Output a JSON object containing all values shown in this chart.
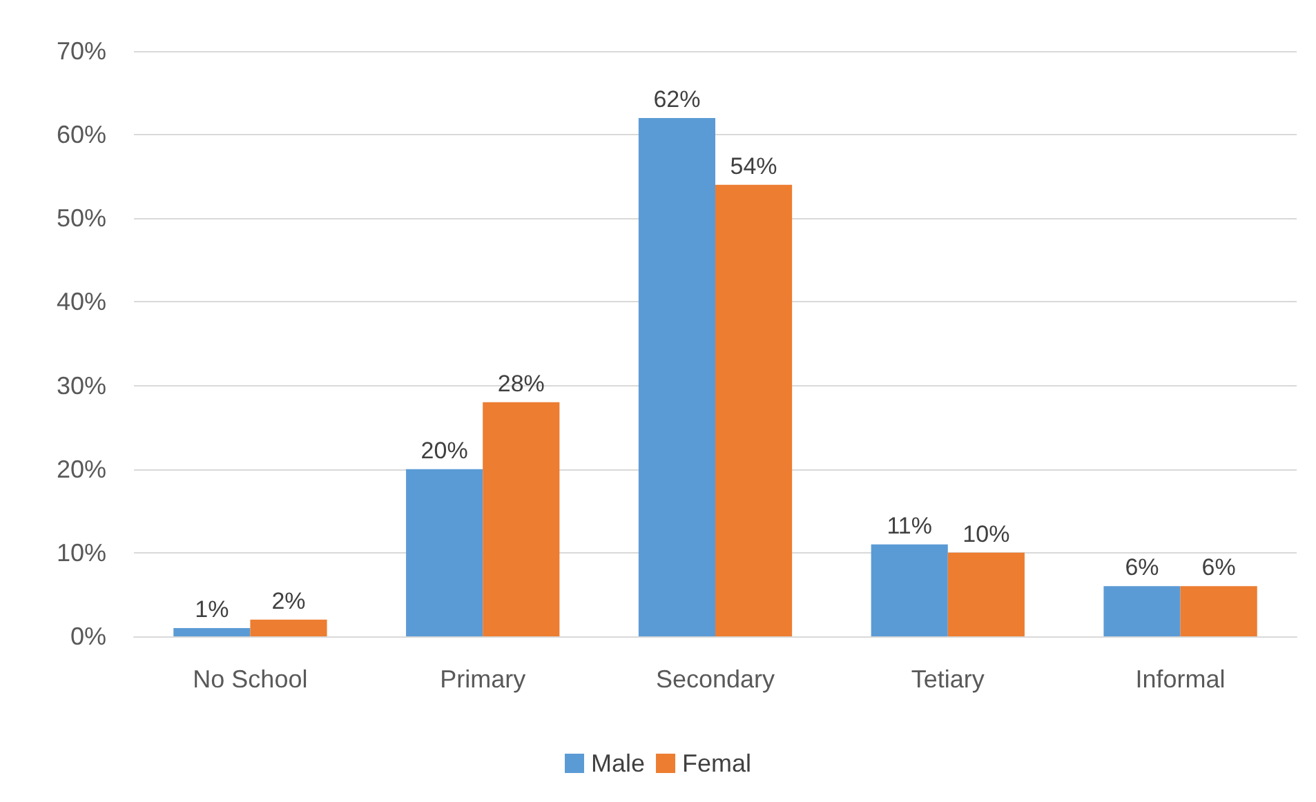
{
  "chart_data": {
    "type": "bar",
    "categories": [
      "No School",
      "Primary",
      "Secondary",
      "Tetiary",
      "Informal"
    ],
    "series": [
      {
        "name": "Male",
        "color": "#5b9bd5",
        "values": [
          1,
          20,
          62,
          11,
          6
        ],
        "value_labels": [
          "1%",
          "20%",
          "62%",
          "11%",
          "6%"
        ]
      },
      {
        "name": "Femal",
        "color": "#ed7d31",
        "values": [
          2,
          28,
          54,
          10,
          6
        ],
        "value_labels": [
          "2%",
          "28%",
          "54%",
          "10%",
          "6%"
        ]
      }
    ],
    "ylim": [
      0,
      70
    ],
    "yticks": [
      {
        "value": 0,
        "label": "0%"
      },
      {
        "value": 10,
        "label": "10%"
      },
      {
        "value": 20,
        "label": "20%"
      },
      {
        "value": 30,
        "label": "30%"
      },
      {
        "value": 40,
        "label": "40%"
      },
      {
        "value": 50,
        "label": "50%"
      },
      {
        "value": 60,
        "label": "60%"
      },
      {
        "value": 70,
        "label": "70%"
      }
    ],
    "grid": "y",
    "legend": "bottom"
  }
}
